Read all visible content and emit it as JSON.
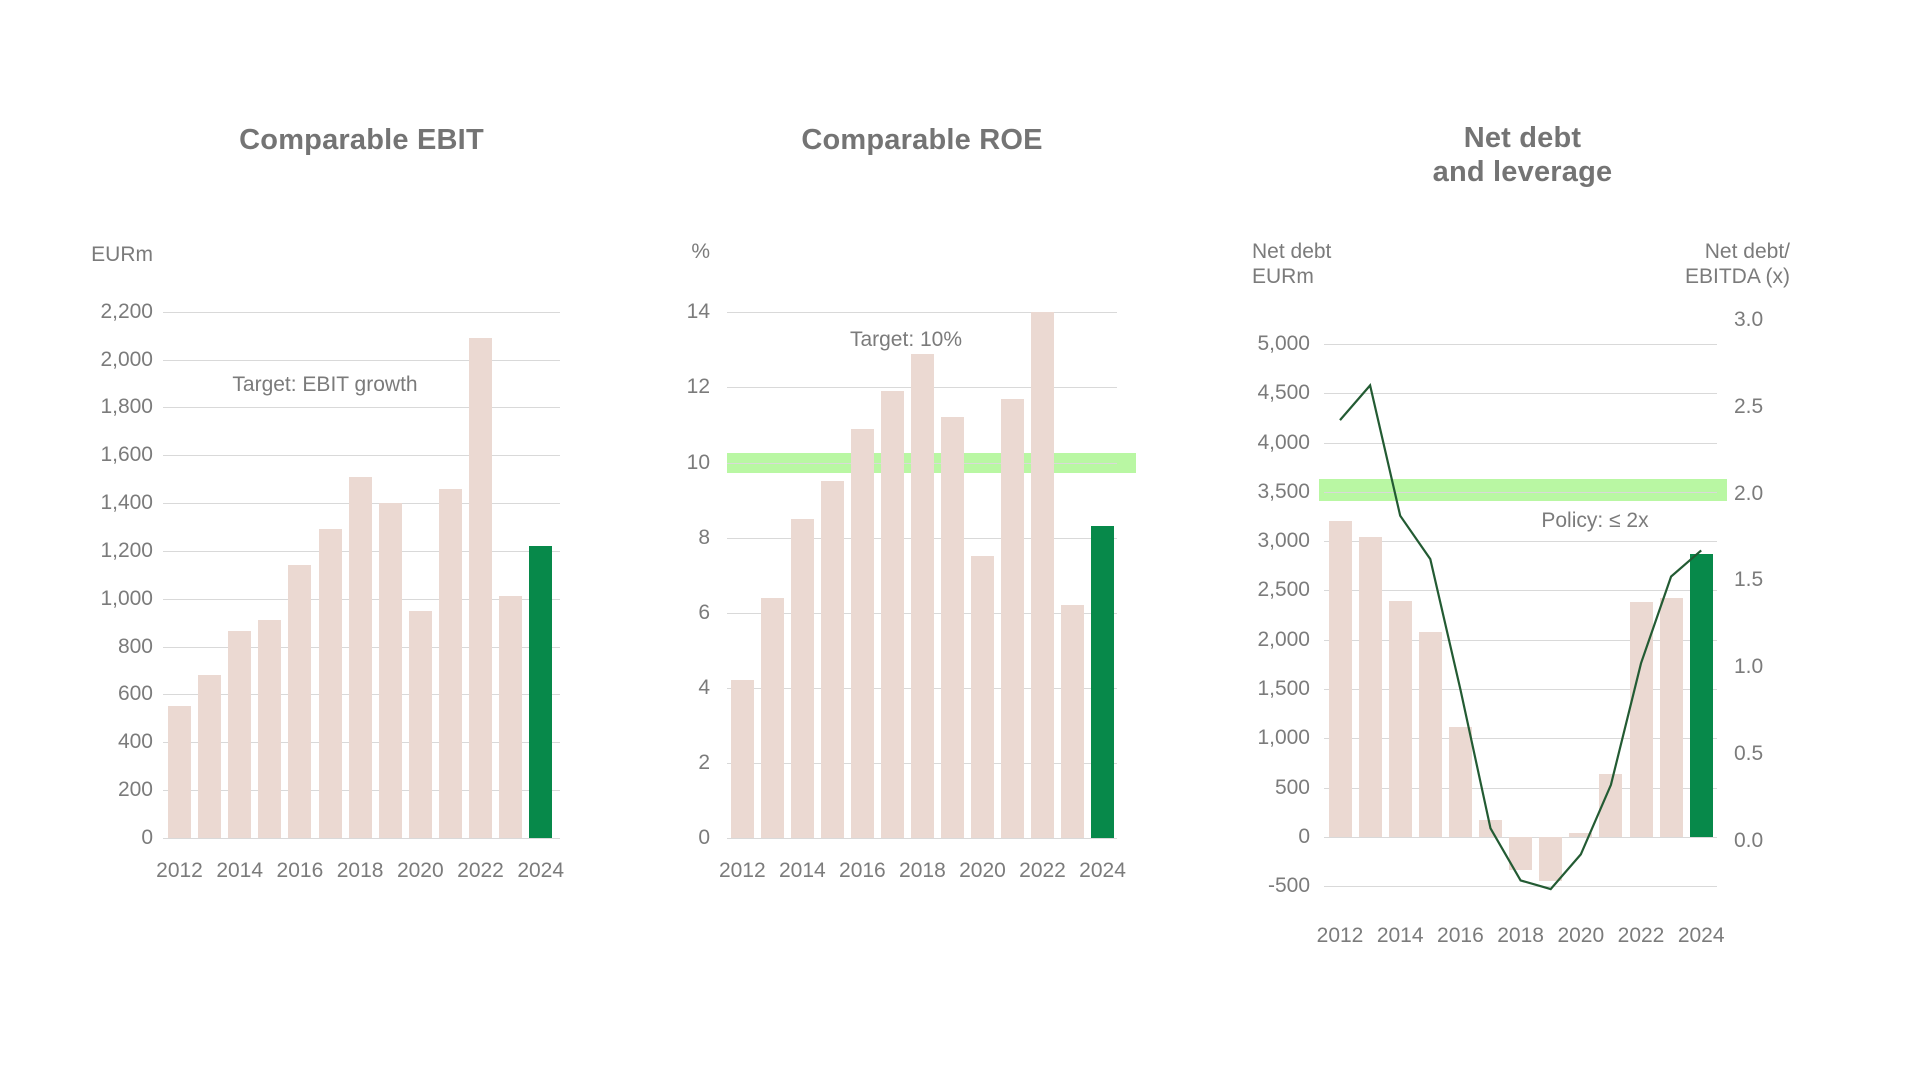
{
  "page": {
    "background": "#ffffff"
  },
  "colors": {
    "bar": "#ebd9d2",
    "bar_highlight": "#07894a",
    "target_band": "#b9f7a3",
    "line": "#235b33",
    "gridline": "#d9d9d9",
    "text": "#7b7b7b",
    "title": "#747474"
  },
  "chart_data": [
    {
      "type": "bar",
      "title": "Comparable EBIT",
      "unit_label": "EURm",
      "annotation": "Target: EBIT growth",
      "categories": [
        "2012",
        "2013",
        "2014",
        "2015",
        "2016",
        "2017",
        "2018",
        "2019",
        "2020",
        "2021",
        "2022",
        "2023",
        "2024"
      ],
      "values": [
        550,
        680,
        865,
        910,
        1140,
        1290,
        1510,
        1400,
        950,
        1460,
        2090,
        1010,
        1220
      ],
      "highlight_index": 12,
      "ylabel": "EURm",
      "ylim": [
        0,
        2200
      ],
      "ytick_step": 200,
      "ytick_labels": [
        "0",
        "200",
        "400",
        "600",
        "800",
        "1,000",
        "1,200",
        "1,400",
        "1,600",
        "1,800",
        "2,000",
        "2,200"
      ],
      "xtick_labels": [
        "2012",
        "2014",
        "2016",
        "2018",
        "2020",
        "2022",
        "2024"
      ],
      "grid": true,
      "legend": "none"
    },
    {
      "type": "bar",
      "title": "Comparable ROE",
      "unit_label": "%",
      "annotation": "Target: 10%",
      "categories": [
        "2012",
        "2013",
        "2014",
        "2015",
        "2016",
        "2017",
        "2018",
        "2019",
        "2020",
        "2021",
        "2022",
        "2023",
        "2024"
      ],
      "values": [
        4.2,
        6.4,
        8.5,
        9.5,
        10.9,
        11.9,
        12.9,
        11.2,
        7.5,
        11.7,
        14.0,
        6.2,
        8.3
      ],
      "highlight_index": 12,
      "ylabel": "%",
      "ylim": [
        0,
        14
      ],
      "ytick_step": 2,
      "ytick_labels": [
        "0",
        "2",
        "4",
        "6",
        "8",
        "10",
        "12",
        "14"
      ],
      "xtick_labels": [
        "2012",
        "2014",
        "2016",
        "2018",
        "2020",
        "2022",
        "2024"
      ],
      "target_band": {
        "center_value": 10,
        "label": "Target: 10%"
      },
      "grid": true,
      "legend": "none"
    },
    {
      "type": "bar+line",
      "title": "Net debt\nand leverage",
      "left_axis_label": "Net debt\nEURm",
      "right_axis_label": "Net debt/\nEBITDA (x)",
      "annotation": "Policy: ≤ 2x",
      "categories": [
        "2012",
        "2013",
        "2014",
        "2015",
        "2016",
        "2017",
        "2018",
        "2019",
        "2020",
        "2021",
        "2022",
        "2023",
        "2024"
      ],
      "series": [
        {
          "name": "Net debt (EURm)",
          "type": "bar",
          "values": [
            3200,
            3040,
            2390,
            2080,
            1120,
            170,
            -330,
            -450,
            40,
            640,
            2380,
            2420,
            2870
          ]
        },
        {
          "name": "Net debt/EBITDA (x)",
          "type": "line",
          "values": [
            2.4,
            2.6,
            1.85,
            1.6,
            0.85,
            0.05,
            -0.25,
            -0.3,
            -0.1,
            0.3,
            1.0,
            1.5,
            1.65
          ]
        }
      ],
      "highlight_index": 12,
      "left_ylim": [
        -500,
        5000
      ],
      "left_ytick_step": 500,
      "left_ytick_labels": [
        "-500",
        "0",
        "500",
        "1,000",
        "1,500",
        "2,000",
        "2,500",
        "3,000",
        "3,500",
        "4,000",
        "4,500",
        "5,000"
      ],
      "right_ylim": [
        0,
        3.0
      ],
      "right_ytick_labels": [
        "0.0",
        "0.5",
        "1.0",
        "1.5",
        "2.0",
        "2.5",
        "3.0"
      ],
      "xtick_labels": [
        "2012",
        "2014",
        "2016",
        "2018",
        "2020",
        "2022",
        "2024"
      ],
      "target_band": {
        "center_value_right": 2.0,
        "label": "Policy: ≤ 2x"
      },
      "grid": true,
      "legend": "none"
    }
  ]
}
